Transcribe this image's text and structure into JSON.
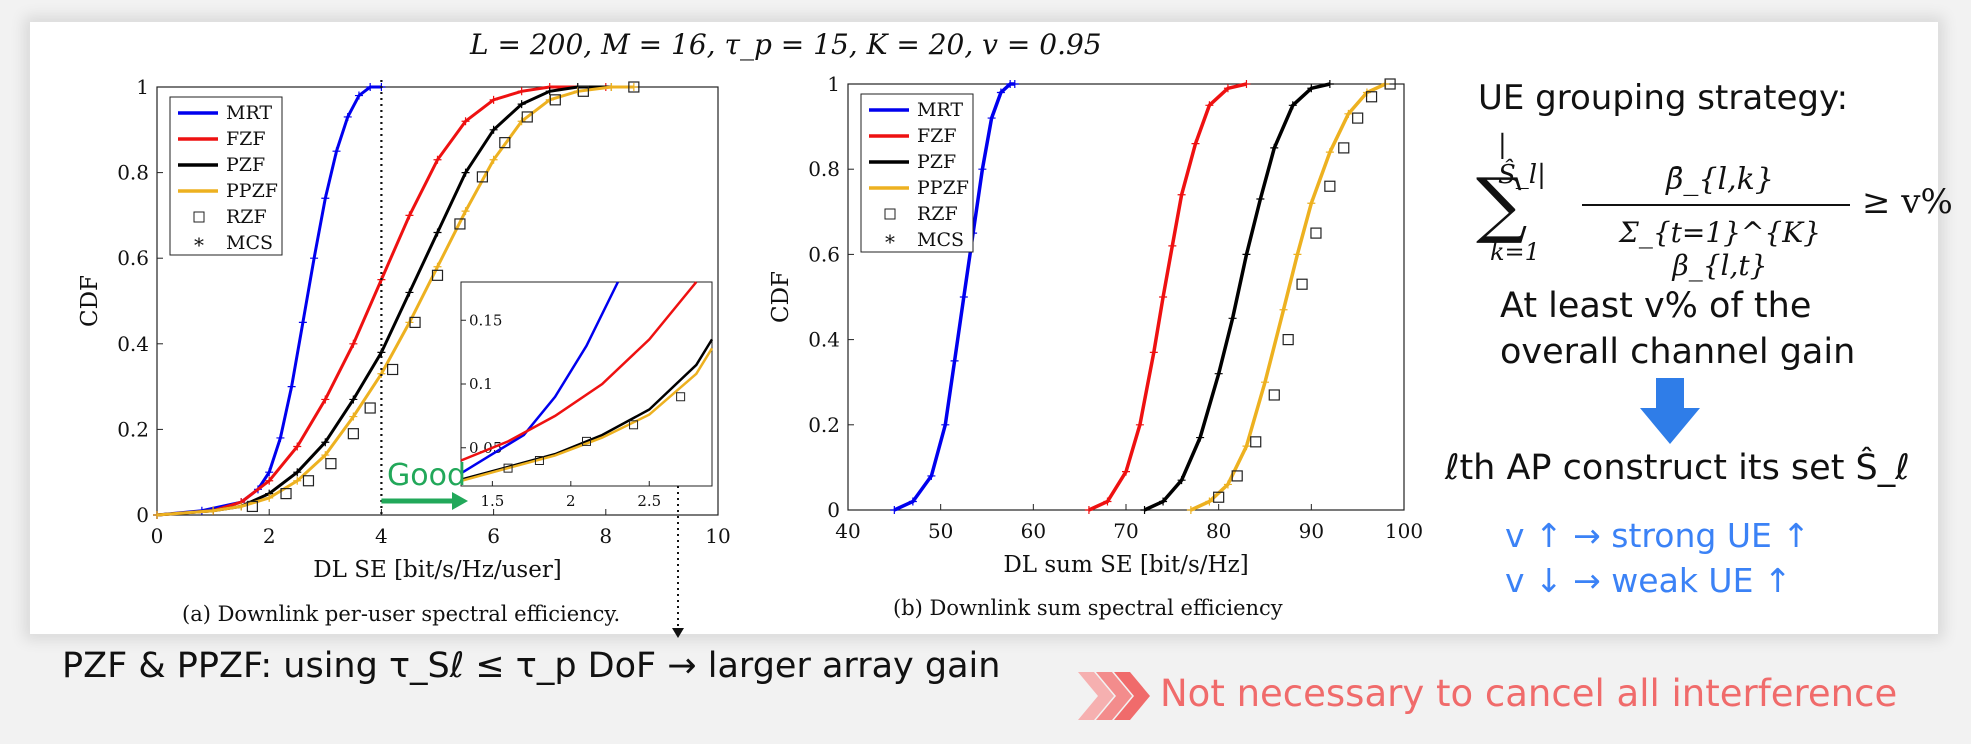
{
  "params_label": "L = 200, M = 16, τ_p = 15, K = 20, v = 0.95",
  "side": {
    "title": "UE grouping strategy:",
    "formula_upper": "|Ŝ_l|",
    "formula_numerator": "β̄_{l,k}",
    "formula_denominator": "Σ_{t=1}^{K} β_{l,t}",
    "formula_condition": "≥ v%",
    "formula_lower": "k=1",
    "gain_line1": "At least v% of the",
    "gain_line2": "overall channel gain",
    "ap_set": "ℓth AP construct its set Ŝ_ℓ",
    "blue1": "v ↑ → strong UE ↑",
    "blue2": "v ↓ → weak UE ↑"
  },
  "bottom_note": "PZF & PPZF: using τ_Sℓ ≤ τ_p DoF → larger array gain",
  "conclusion": "Not necessary to cancel all interference",
  "good_label": "Good",
  "colors": {
    "MRT": "#0000ee",
    "FZF": "#ee1111",
    "PZF": "#000000",
    "PPZF": "#edb120",
    "arrow_blue": "#2f7de8",
    "good_green": "#22a85a",
    "conclusion_red": "#f06b6b"
  },
  "chart_data": [
    {
      "type": "line",
      "caption": "(a) Downlink per-user spectral efficiency.",
      "xlabel": "DL SE [bit/s/Hz/user]",
      "ylabel": "CDF",
      "xlim": [
        0,
        10
      ],
      "ylim": [
        0,
        1
      ],
      "xticks": [
        0,
        2,
        4,
        6,
        8,
        10
      ],
      "yticks": [
        0,
        0.2,
        0.4,
        0.6,
        0.8,
        1
      ],
      "xtick_labels": [
        "0",
        "2",
        "4",
        "6",
        "8",
        "10"
      ],
      "ytick_labels": [
        "0",
        "0.2",
        "0.4",
        "0.6",
        "0.8",
        "1"
      ],
      "legend_position": "top-left",
      "legend": [
        "MRT",
        "FZF",
        "PZF",
        "PPZF",
        "RZF",
        "MCS"
      ],
      "series": [
        {
          "name": "MRT",
          "x": [
            0,
            0.8,
            1.5,
            1.8,
            2.0,
            2.2,
            2.4,
            2.6,
            2.8,
            3.0,
            3.2,
            3.4,
            3.6,
            3.8,
            4.0
          ],
          "y": [
            0,
            0.01,
            0.03,
            0.06,
            0.1,
            0.18,
            0.3,
            0.45,
            0.6,
            0.74,
            0.85,
            0.93,
            0.98,
            1,
            1
          ]
        },
        {
          "name": "FZF",
          "x": [
            0,
            1,
            1.5,
            2,
            2.5,
            3,
            3.5,
            4,
            4.5,
            5,
            5.5,
            6,
            6.5,
            7,
            8
          ],
          "y": [
            0,
            0.01,
            0.03,
            0.08,
            0.16,
            0.27,
            0.4,
            0.55,
            0.7,
            0.83,
            0.92,
            0.97,
            0.99,
            1,
            1
          ]
        },
        {
          "name": "PZF",
          "x": [
            0,
            1,
            1.5,
            2,
            2.5,
            3,
            3.5,
            4,
            4.5,
            5,
            5.5,
            6,
            6.5,
            7,
            7.5,
            8.1
          ],
          "y": [
            0,
            0.01,
            0.02,
            0.05,
            0.1,
            0.17,
            0.27,
            0.38,
            0.52,
            0.66,
            0.8,
            0.9,
            0.96,
            0.99,
            1,
            1
          ]
        },
        {
          "name": "PPZF",
          "x": [
            0,
            1,
            1.5,
            2,
            2.5,
            3,
            3.5,
            4,
            4.5,
            5,
            5.5,
            6,
            6.5,
            7,
            7.5,
            8.1,
            8.5
          ],
          "y": [
            0,
            0.01,
            0.02,
            0.04,
            0.08,
            0.14,
            0.23,
            0.33,
            0.45,
            0.58,
            0.71,
            0.83,
            0.92,
            0.97,
            0.99,
            1,
            1
          ]
        }
      ],
      "rzf_markers": {
        "x": [
          1.7,
          2.3,
          2.7,
          3.1,
          3.5,
          3.8,
          4.2,
          4.6,
          5.0,
          5.4,
          5.8,
          6.2,
          6.6,
          7.1,
          7.6,
          8.5
        ],
        "y": [
          0.02,
          0.05,
          0.08,
          0.12,
          0.19,
          0.25,
          0.34,
          0.45,
          0.56,
          0.68,
          0.79,
          0.87,
          0.93,
          0.97,
          0.99,
          1
        ]
      },
      "reference_x": 4,
      "inset": {
        "xlim": [
          1.3,
          2.9
        ],
        "ylim": [
          0.02,
          0.18
        ],
        "xtick_labels": [
          "1.5",
          "2",
          "2.5"
        ],
        "xticks": [
          1.5,
          2,
          2.5
        ],
        "ytick_labels": [
          "0.05",
          "0.1",
          "0.15"
        ],
        "yticks": [
          0.05,
          0.1,
          0.15
        ],
        "series": [
          {
            "name": "MRT",
            "x": [
              1.3,
              1.5,
              1.7,
              1.9,
              2.1,
              2.3
            ],
            "y": [
              0.03,
              0.045,
              0.06,
              0.09,
              0.13,
              0.18
            ]
          },
          {
            "name": "FZF",
            "x": [
              1.3,
              1.6,
              1.9,
              2.2,
              2.5,
              2.8
            ],
            "y": [
              0.04,
              0.055,
              0.075,
              0.1,
              0.135,
              0.18
            ]
          },
          {
            "name": "PZF",
            "x": [
              1.3,
              1.6,
              1.9,
              2.2,
              2.5,
              2.8,
              2.9
            ],
            "y": [
              0.025,
              0.035,
              0.045,
              0.06,
              0.08,
              0.115,
              0.135
            ]
          },
          {
            "name": "PPZF",
            "x": [
              1.3,
              1.6,
              1.9,
              2.2,
              2.5,
              2.8,
              2.9
            ],
            "y": [
              0.024,
              0.034,
              0.044,
              0.058,
              0.076,
              0.108,
              0.128
            ]
          }
        ],
        "rzf_markers": {
          "x": [
            1.6,
            1.8,
            2.1,
            2.4,
            2.7
          ],
          "y": [
            0.034,
            0.04,
            0.055,
            0.068,
            0.09
          ]
        }
      }
    },
    {
      "type": "line",
      "caption": "(b) Downlink sum spectral efficiency",
      "xlabel": "DL sum SE [bit/s/Hz]",
      "ylabel": "CDF",
      "xlim": [
        40,
        100
      ],
      "ylim": [
        0,
        1
      ],
      "xticks": [
        40,
        50,
        60,
        70,
        80,
        90,
        100
      ],
      "yticks": [
        0,
        0.2,
        0.4,
        0.6,
        0.8,
        1
      ],
      "xtick_labels": [
        "40",
        "50",
        "60",
        "70",
        "80",
        "90",
        "100"
      ],
      "ytick_labels": [
        "0",
        "0.2",
        "0.4",
        "0.6",
        "0.8",
        "1"
      ],
      "legend_position": "top-left",
      "legend": [
        "MRT",
        "FZF",
        "PZF",
        "PPZF",
        "RZF",
        "MCS"
      ],
      "series": [
        {
          "name": "MRT",
          "x": [
            45,
            47,
            49,
            50.5,
            51.5,
            52.5,
            53.5,
            54.5,
            55.5,
            56.5,
            57.5,
            58
          ],
          "y": [
            0,
            0.02,
            0.08,
            0.2,
            0.35,
            0.5,
            0.65,
            0.8,
            0.92,
            0.98,
            1,
            1
          ]
        },
        {
          "name": "FZF",
          "x": [
            66,
            68,
            70,
            71.5,
            73,
            74,
            75,
            76,
            77.5,
            79,
            81,
            83
          ],
          "y": [
            0,
            0.02,
            0.09,
            0.2,
            0.37,
            0.5,
            0.62,
            0.74,
            0.86,
            0.95,
            0.99,
            1
          ]
        },
        {
          "name": "PZF",
          "x": [
            72,
            74,
            76,
            78,
            80,
            81.5,
            83,
            84.5,
            86,
            88,
            90,
            92
          ],
          "y": [
            0,
            0.02,
            0.07,
            0.17,
            0.32,
            0.45,
            0.6,
            0.73,
            0.85,
            0.95,
            0.99,
            1
          ]
        },
        {
          "name": "PPZF",
          "x": [
            77,
            79,
            81,
            83,
            85,
            87,
            88.5,
            90,
            92,
            94,
            96,
            98
          ],
          "y": [
            0,
            0.02,
            0.06,
            0.15,
            0.3,
            0.47,
            0.6,
            0.72,
            0.84,
            0.93,
            0.98,
            1
          ]
        }
      ],
      "rzf_markers": {
        "x": [
          80,
          82,
          84,
          86,
          87.5,
          89,
          90.5,
          92,
          93.5,
          95,
          96.5,
          98.5
        ],
        "y": [
          0.03,
          0.08,
          0.16,
          0.27,
          0.4,
          0.53,
          0.65,
          0.76,
          0.85,
          0.92,
          0.97,
          1
        ]
      }
    }
  ]
}
